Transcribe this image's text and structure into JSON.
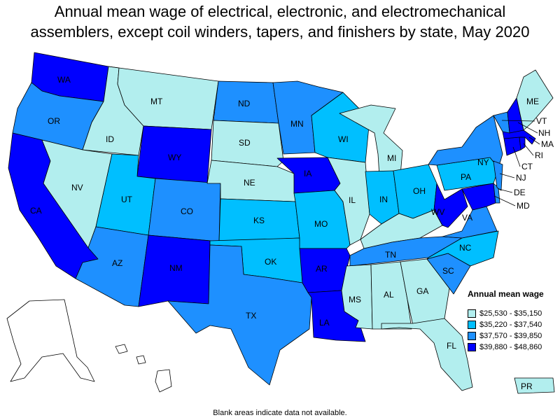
{
  "title_line1": "Annual mean wage of electrical, electronic, and electromechanical",
  "title_line2": "assemblers, except coil winders, tapers, and finishers by state, May 2020",
  "legend": {
    "title": "Annual mean wage",
    "items": [
      {
        "label": "$25,530 - $35,150",
        "color": "#b2eeee"
      },
      {
        "label": "$35,220 - $37,540",
        "color": "#00bfff"
      },
      {
        "label": "$37,570 - $39,850",
        "color": "#1e90ff"
      },
      {
        "label": "$39,880 - $48,860",
        "color": "#0000ff"
      }
    ]
  },
  "footnote": "Blank areas indicate data not available.",
  "states": {
    "WA": {
      "label": "WA",
      "class": 4
    },
    "OR": {
      "label": "OR",
      "class": 3
    },
    "CA": {
      "label": "CA",
      "class": 4
    },
    "ID": {
      "label": "ID",
      "class": 1
    },
    "NV": {
      "label": "NV",
      "class": 1
    },
    "MT": {
      "label": "MT",
      "class": 1
    },
    "WY": {
      "label": "WY",
      "class": 4
    },
    "UT": {
      "label": "UT",
      "class": 2
    },
    "AZ": {
      "label": "AZ",
      "class": 3
    },
    "CO": {
      "label": "CO",
      "class": 3
    },
    "NM": {
      "label": "NM",
      "class": 4
    },
    "ND": {
      "label": "ND",
      "class": 3
    },
    "SD": {
      "label": "SD",
      "class": 1
    },
    "NE": {
      "label": "NE",
      "class": 1
    },
    "KS": {
      "label": "KS",
      "class": 2
    },
    "OK": {
      "label": "OK",
      "class": 2
    },
    "TX": {
      "label": "TX",
      "class": 3
    },
    "MN": {
      "label": "MN",
      "class": 3
    },
    "IA": {
      "label": "IA",
      "class": 4
    },
    "MO": {
      "label": "MO",
      "class": 2
    },
    "AR": {
      "label": "AR",
      "class": 4
    },
    "LA": {
      "label": "LA",
      "class": 4
    },
    "WI": {
      "label": "WI",
      "class": 2
    },
    "IL": {
      "label": "IL",
      "class": 1
    },
    "MI": {
      "label": "MI",
      "class": 1
    },
    "IN": {
      "label": "IN",
      "class": 2
    },
    "OH": {
      "label": "OH",
      "class": 2
    },
    "KY": {
      "label": "",
      "class": 1
    },
    "TN": {
      "label": "TN",
      "class": 3
    },
    "MS": {
      "label": "MS",
      "class": 1
    },
    "AL": {
      "label": "AL",
      "class": 1
    },
    "GA": {
      "label": "GA",
      "class": 1
    },
    "FL": {
      "label": "FL",
      "class": 1
    },
    "SC": {
      "label": "SC",
      "class": 3
    },
    "NC": {
      "label": "NC",
      "class": 2
    },
    "VA": {
      "label": "VA",
      "class": 3
    },
    "WV": {
      "label": "WV",
      "class": 4
    },
    "PA": {
      "label": "PA",
      "class": 2
    },
    "NY": {
      "label": "NY",
      "class": 3
    },
    "MD": {
      "label": "MD",
      "class": 4
    },
    "DE": {
      "label": "DE",
      "class": 3
    },
    "NJ": {
      "label": "NJ",
      "class": 3
    },
    "CT": {
      "label": "CT",
      "class": 4
    },
    "RI": {
      "label": "RI",
      "class": 4
    },
    "MA": {
      "label": "MA",
      "class": 4
    },
    "VT": {
      "label": "VT",
      "class": 3
    },
    "NH": {
      "label": "NH",
      "class": 4
    },
    "ME": {
      "label": "ME",
      "class": 1
    },
    "AK": {
      "label": "",
      "class": 0
    },
    "HI": {
      "label": "",
      "class": 0
    },
    "PR": {
      "label": "PR",
      "class": 1
    }
  }
}
